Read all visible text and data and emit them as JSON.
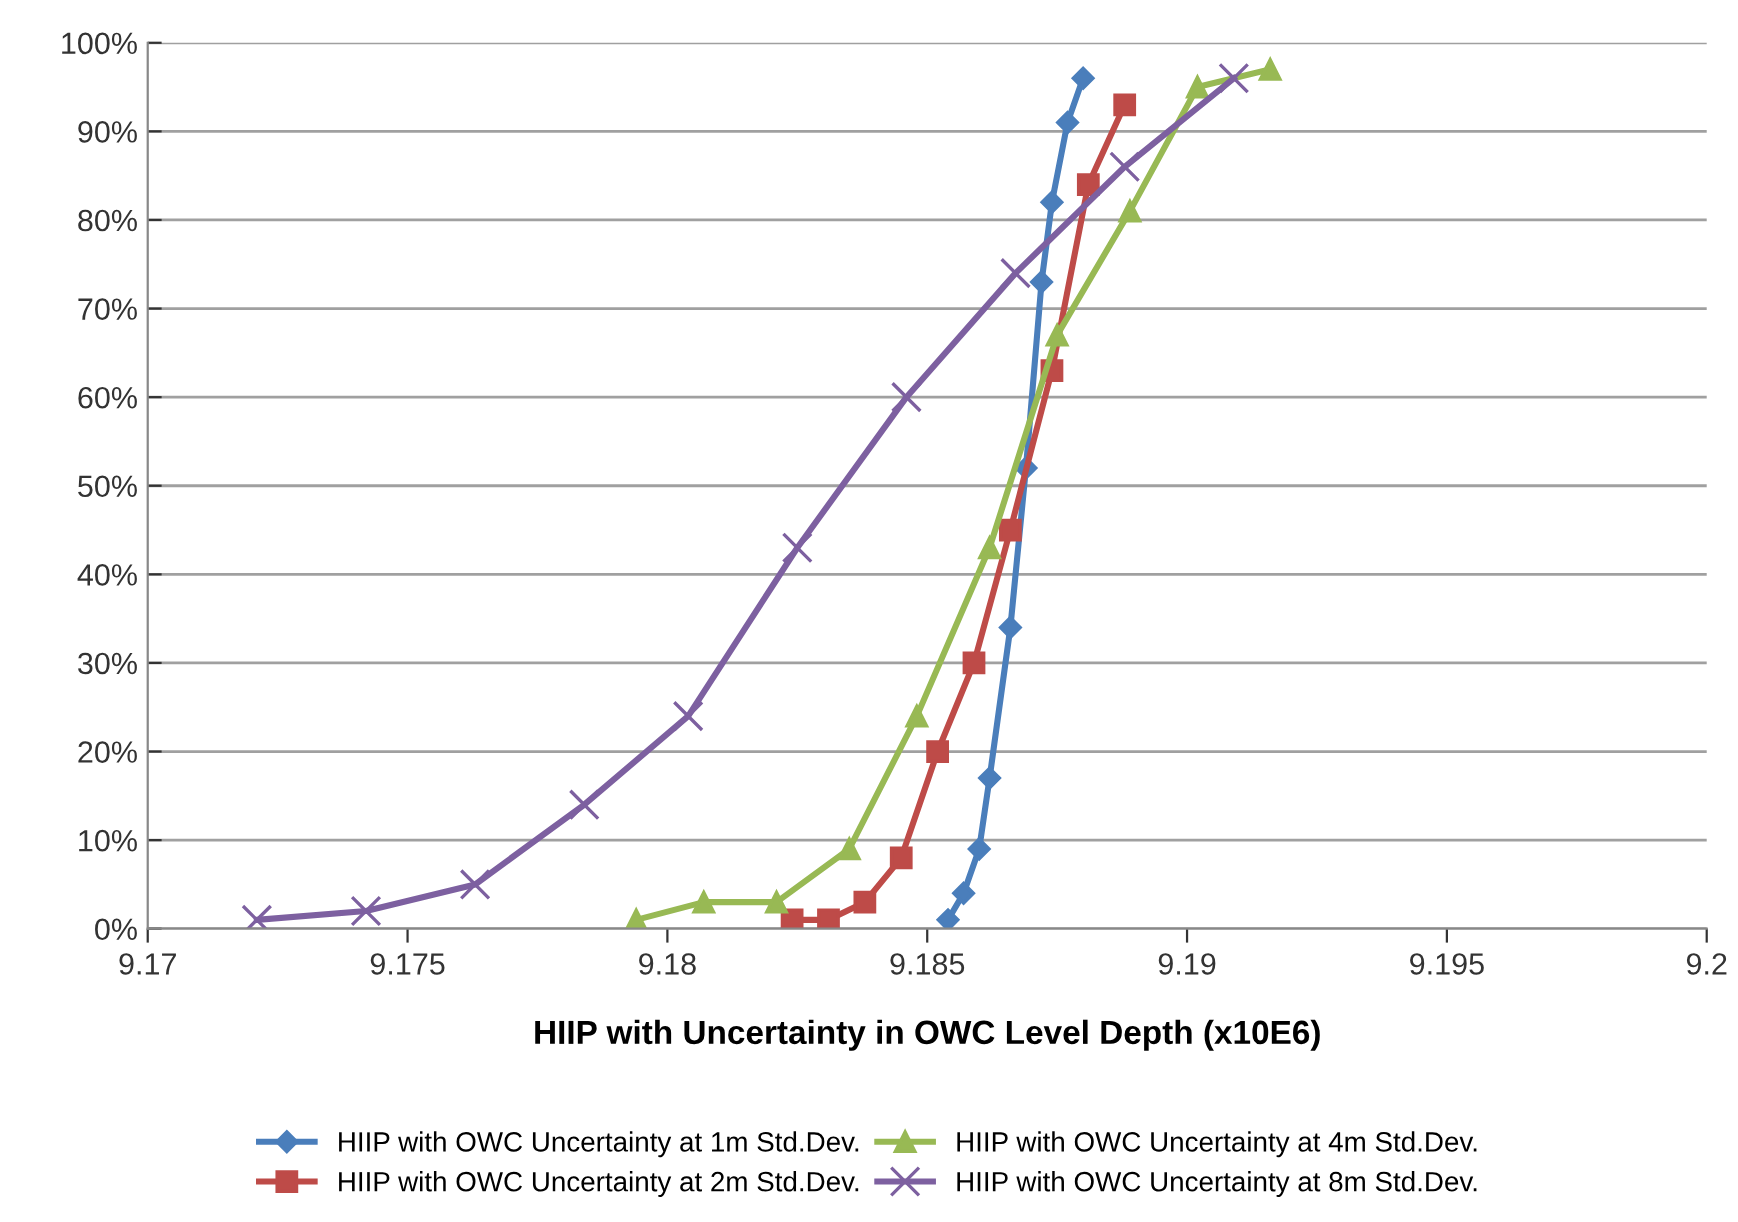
{
  "chart_data": {
    "type": "line",
    "xlabel": "HIIP with Uncertainty in OWC Level Depth (x10E6)",
    "xlim": [
      9.17,
      9.2
    ],
    "xticks": [
      9.17,
      9.175,
      9.18,
      9.185,
      9.19,
      9.195,
      9.2
    ],
    "ylim": [
      0,
      100
    ],
    "yticks": [
      {
        "value": 0,
        "label": "0%"
      },
      {
        "value": 10,
        "label": "10%"
      },
      {
        "value": 20,
        "label": "20%"
      },
      {
        "value": 30,
        "label": "30%"
      },
      {
        "value": 40,
        "label": "40%"
      },
      {
        "value": 50,
        "label": "50%"
      },
      {
        "value": 60,
        "label": "60%"
      },
      {
        "value": 70,
        "label": "70%"
      },
      {
        "value": 80,
        "label": "80%"
      },
      {
        "value": 90,
        "label": "90%"
      },
      {
        "value": 100,
        "label": "100%"
      }
    ],
    "grid": "y",
    "legend": "bottom",
    "series": [
      {
        "name": "HIIP with OWC Uncertainty at 1m Std.Dev.",
        "color": "#4a7ebb",
        "marker": "diamond",
        "x": [
          9.1854,
          9.1857,
          9.186,
          9.1862,
          9.1866,
          9.1869,
          9.1872,
          9.1874,
          9.1877,
          9.188
        ],
        "values": [
          1,
          4,
          9,
          17,
          34,
          52,
          73,
          82,
          91,
          96
        ]
      },
      {
        "name": "HIIP with OWC Uncertainty at 2m Std.Dev.",
        "color": "#be4b48",
        "marker": "square",
        "x": [
          9.1824,
          9.1831,
          9.1838,
          9.1845,
          9.1852,
          9.1859,
          9.1866,
          9.1874,
          9.1881,
          9.1888
        ],
        "values": [
          1,
          1,
          3,
          8,
          20,
          30,
          45,
          63,
          84,
          93
        ]
      },
      {
        "name": "HIIP with OWC Uncertainty at 4m Std.Dev.",
        "color": "#98b954",
        "marker": "triangle",
        "x": [
          9.1794,
          9.1807,
          9.1821,
          9.1835,
          9.1848,
          9.1862,
          9.1875,
          9.1889,
          9.1902,
          9.1916
        ],
        "values": [
          1,
          3,
          3,
          9,
          24,
          43,
          67,
          81,
          95,
          97
        ]
      },
      {
        "name": "HIIP with OWC Uncertainty at 8m Std.Dev.",
        "color": "#7d60a0",
        "marker": "cross",
        "x": [
          9.1721,
          9.1742,
          9.1763,
          9.1784,
          9.1804,
          9.1825,
          9.1846,
          9.1867,
          9.1888,
          9.1909
        ],
        "values": [
          1,
          2,
          5,
          14,
          24,
          43,
          60,
          74,
          86,
          96
        ]
      }
    ]
  }
}
